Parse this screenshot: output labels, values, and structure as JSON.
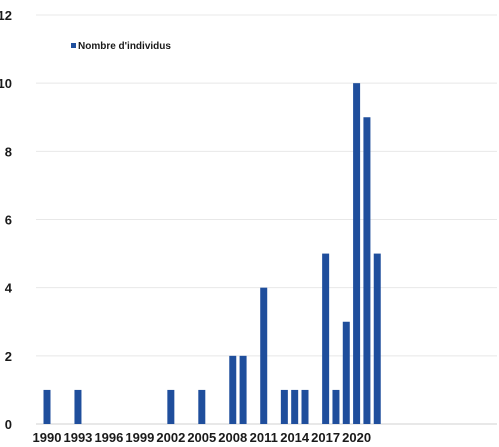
{
  "chart_data": {
    "type": "bar",
    "categories": [
      "1990",
      "1991",
      "1992",
      "1993",
      "1994",
      "1995",
      "1996",
      "1997",
      "1998",
      "1999",
      "2000",
      "2001",
      "2002",
      "2003",
      "2004",
      "2005",
      "2006",
      "2007",
      "2008",
      "2009",
      "2010",
      "2011",
      "2012",
      "2013",
      "2014",
      "2015",
      "2016",
      "2017",
      "2018",
      "2019",
      "2020",
      "2021",
      "2022"
    ],
    "series": [
      {
        "name": "Nombre d'individus",
        "values": [
          1,
          0,
          0,
          1,
          0,
          0,
          0,
          0,
          0,
          0,
          0,
          0,
          1,
          0,
          0,
          1,
          0,
          0,
          2,
          2,
          0,
          4,
          0,
          1,
          1,
          1,
          0,
          5,
          1,
          3,
          10,
          9,
          5
        ],
        "color": "#1f4e9c"
      }
    ],
    "x_tick_labels": [
      "1990",
      "1993",
      "1996",
      "1999",
      "2002",
      "2005",
      "2008",
      "2011",
      "2014",
      "2017",
      "2020"
    ],
    "y_ticks": [
      0,
      2,
      4,
      6,
      8,
      10,
      12
    ],
    "ylim": [
      0,
      12
    ],
    "title": "",
    "xlabel": "",
    "ylabel": "",
    "grid": true,
    "legend_position": "top-left"
  }
}
